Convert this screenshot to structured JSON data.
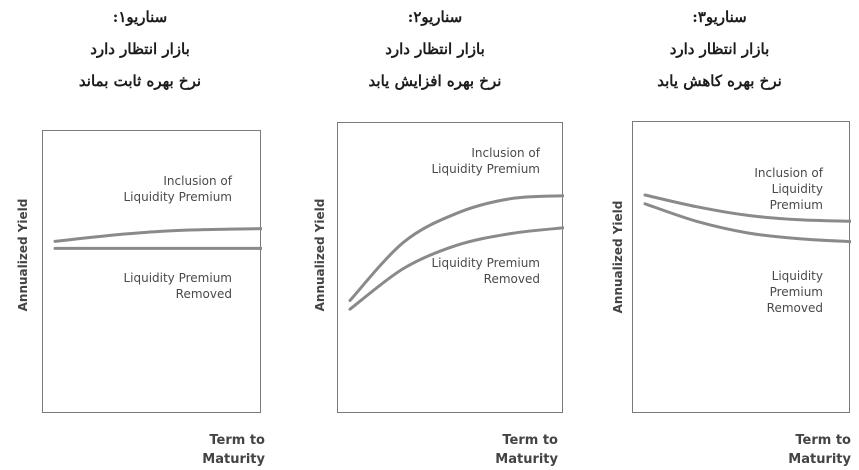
{
  "colors": {
    "curve": "#8a8a8a",
    "frame": "#7a7a7a",
    "text": "#444444"
  },
  "chart_data": [
    {
      "type": "line",
      "title": [
        "سناریو۱:",
        "بازار انتظار دارد",
        "نرخ بهره ثابت بماند"
      ],
      "xlabel": [
        "Term to",
        "Maturity"
      ],
      "ylabel": "Annualized Yield",
      "x": [
        0,
        0.25,
        0.5,
        0.75,
        1
      ],
      "xlim": [
        0,
        1
      ],
      "ylim": [
        0,
        10
      ],
      "grid": false,
      "series": [
        {
          "name": "Inclusion of Liquidity Premium",
          "values": [
            6.1,
            6.3,
            6.45,
            6.52,
            6.55
          ]
        },
        {
          "name": "Liquidity Premium Removed",
          "values": [
            5.85,
            5.85,
            5.85,
            5.85,
            5.85
          ]
        }
      ]
    },
    {
      "type": "line",
      "title": [
        "سناریو۲:",
        "بازار انتظار دارد",
        "نرخ بهره افزایش یابد"
      ],
      "xlabel": [
        "Term to",
        "Maturity"
      ],
      "ylabel": "Annualized Yield",
      "x": [
        0,
        0.25,
        0.5,
        0.75,
        1
      ],
      "xlim": [
        0,
        1
      ],
      "ylim": [
        0,
        10
      ],
      "grid": false,
      "series": [
        {
          "name": "Inclusion of Liquidity Premium",
          "values": [
            3.9,
            5.9,
            6.9,
            7.4,
            7.5
          ]
        },
        {
          "name": "Liquidity Premium Removed",
          "values": [
            3.6,
            5.0,
            5.8,
            6.2,
            6.4
          ]
        }
      ]
    },
    {
      "type": "line",
      "title": [
        "سناریو۳:",
        "بازار انتظار دارد",
        "نرخ بهره کاهش یابد"
      ],
      "xlabel": [
        "Term to",
        "Maturity"
      ],
      "ylabel": "Annualized Yield",
      "x": [
        0,
        0.25,
        0.5,
        0.75,
        1
      ],
      "xlim": [
        0,
        1
      ],
      "ylim": [
        0,
        10
      ],
      "grid": false,
      "series": [
        {
          "name": "Inclusion of Liquidity Premium",
          "values": [
            7.5,
            7.1,
            6.8,
            6.65,
            6.6
          ]
        },
        {
          "name": "Liquidity Premium Removed",
          "values": [
            7.2,
            6.6,
            6.2,
            6.0,
            5.9
          ]
        }
      ]
    }
  ]
}
